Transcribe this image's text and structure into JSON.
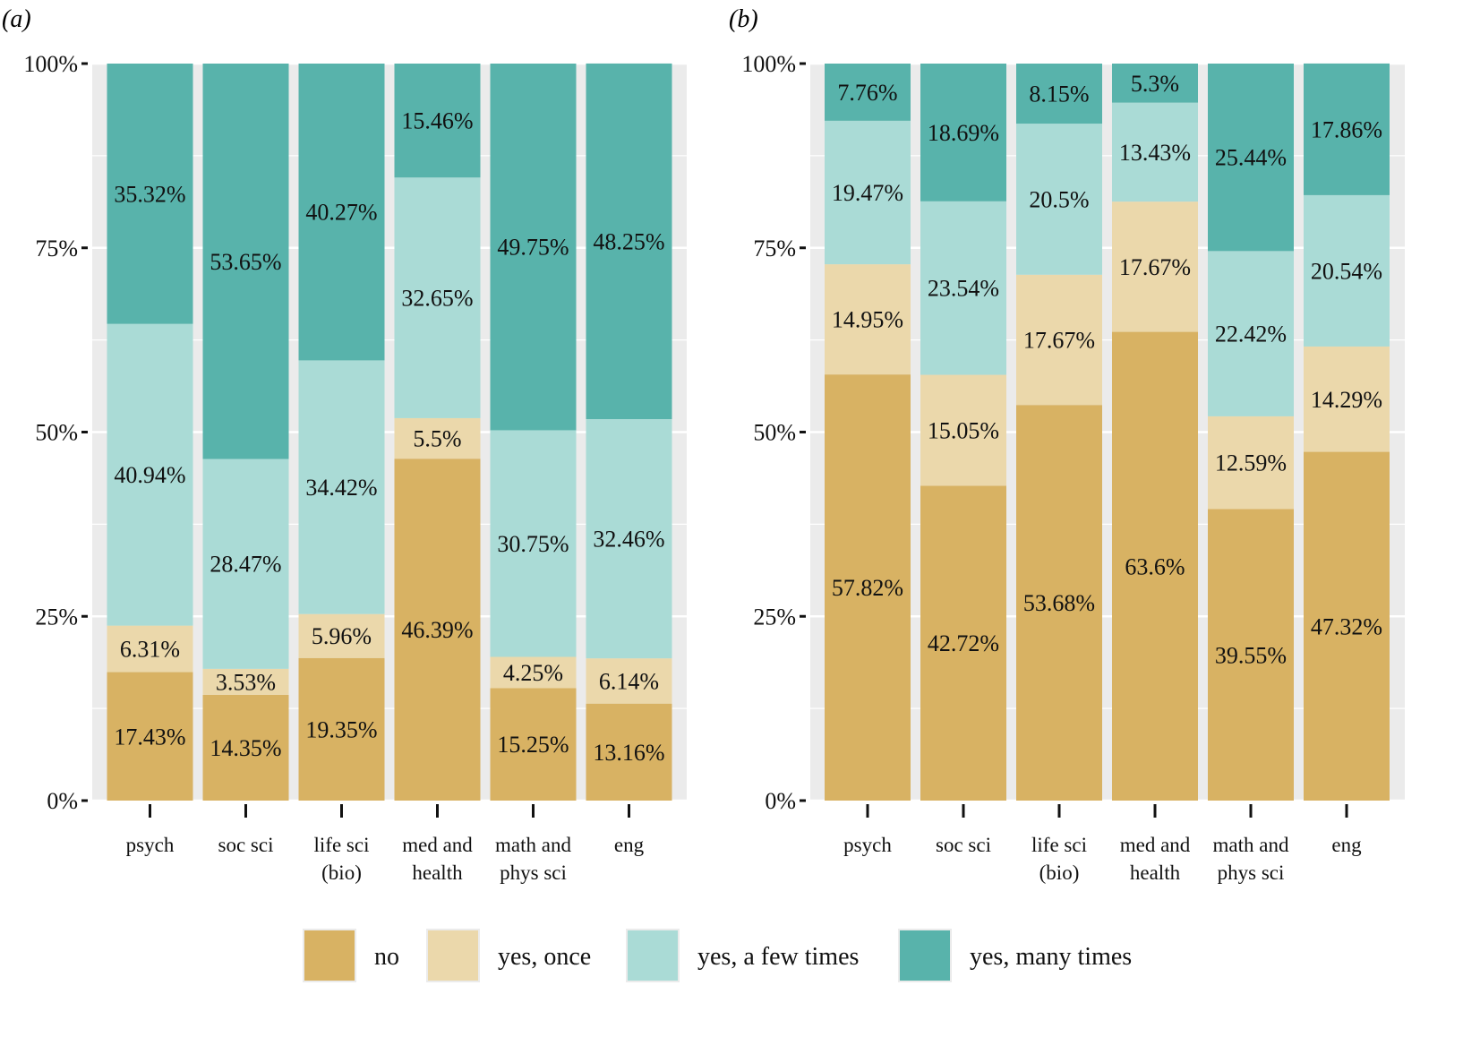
{
  "chart_data": [
    {
      "type": "bar",
      "stacked": true,
      "panel_label": "(a)",
      "categories": [
        "psych",
        "soc sci",
        "life sci (bio)",
        "med and health",
        "math and phys sci",
        "eng"
      ],
      "category_lines": [
        [
          "psych"
        ],
        [
          "soc sci"
        ],
        [
          "life sci",
          "(bio)"
        ],
        [
          "med and",
          "health"
        ],
        [
          "math and",
          "phys sci"
        ],
        [
          "eng"
        ]
      ],
      "series": [
        {
          "name": "no",
          "values": [
            17.43,
            14.35,
            19.35,
            46.39,
            15.25,
            13.16
          ]
        },
        {
          "name": "yes, once",
          "values": [
            6.31,
            3.53,
            5.96,
            5.5,
            4.25,
            6.14
          ]
        },
        {
          "name": "yes, a few times",
          "values": [
            40.94,
            28.47,
            34.42,
            32.65,
            30.75,
            32.46
          ]
        },
        {
          "name": "yes, many times",
          "values": [
            35.32,
            53.65,
            40.27,
            15.46,
            49.75,
            48.25
          ]
        }
      ],
      "labels": [
        [
          "17.43%",
          "6.31%",
          "40.94%",
          "35.32%"
        ],
        [
          "14.35%",
          "3.53%",
          "28.47%",
          "53.65%"
        ],
        [
          "19.35%",
          "5.96%",
          "34.42%",
          "40.27%"
        ],
        [
          "46.39%",
          "5.5%",
          "32.65%",
          "15.46%"
        ],
        [
          "15.25%",
          "4.25%",
          "30.75%",
          "49.75%"
        ],
        [
          "13.16%",
          "6.14%",
          "32.46%",
          "48.25%"
        ]
      ],
      "title": "",
      "xlabel": "",
      "ylabel": "",
      "ylim": [
        0,
        100
      ],
      "yticks": [
        0,
        25,
        50,
        75,
        100
      ],
      "ytick_labels": [
        "0%",
        "25%",
        "50%",
        "75%",
        "100%"
      ],
      "grid": true
    },
    {
      "type": "bar",
      "stacked": true,
      "panel_label": "(b)",
      "categories": [
        "psych",
        "soc sci",
        "life sci (bio)",
        "med and health",
        "math and phys sci",
        "eng"
      ],
      "category_lines": [
        [
          "psych"
        ],
        [
          "soc sci"
        ],
        [
          "life sci",
          "(bio)"
        ],
        [
          "med and",
          "health"
        ],
        [
          "math and",
          "phys sci"
        ],
        [
          "eng"
        ]
      ],
      "series": [
        {
          "name": "no",
          "values": [
            57.82,
            42.72,
            53.68,
            63.6,
            39.55,
            47.32
          ]
        },
        {
          "name": "yes, once",
          "values": [
            14.95,
            15.05,
            17.67,
            17.67,
            12.59,
            14.29
          ]
        },
        {
          "name": "yes, a few times",
          "values": [
            19.47,
            23.54,
            20.5,
            13.43,
            22.42,
            20.54
          ]
        },
        {
          "name": "yes, many times",
          "values": [
            7.76,
            18.69,
            8.15,
            5.3,
            25.44,
            17.86
          ]
        }
      ],
      "labels": [
        [
          "57.82%",
          "14.95%",
          "19.47%",
          "7.76%"
        ],
        [
          "42.72%",
          "15.05%",
          "23.54%",
          "18.69%"
        ],
        [
          "53.68%",
          "17.67%",
          "20.5%",
          "8.15%"
        ],
        [
          "63.6%",
          "17.67%",
          "13.43%",
          "5.3%"
        ],
        [
          "39.55%",
          "12.59%",
          "22.42%",
          "25.44%"
        ],
        [
          "47.32%",
          "14.29%",
          "20.54%",
          "17.86%"
        ]
      ],
      "title": "",
      "xlabel": "",
      "ylabel": "",
      "ylim": [
        0,
        100
      ],
      "yticks": [
        0,
        25,
        50,
        75,
        100
      ],
      "ytick_labels": [
        "0%",
        "25%",
        "50%",
        "75%",
        "100%"
      ],
      "grid": true
    }
  ],
  "legend": {
    "placement": "bottom",
    "items": [
      {
        "name": "no",
        "color": "#D8B263"
      },
      {
        "name": "yes, once",
        "color": "#EBD8AB"
      },
      {
        "name": "yes, a few times",
        "color": "#AADBD6"
      },
      {
        "name": "yes, many times",
        "color": "#58B3AB"
      }
    ]
  },
  "colors": {
    "panel_background": "#EBEBEB",
    "gridline": "#FFFFFF",
    "text": "#111111"
  }
}
